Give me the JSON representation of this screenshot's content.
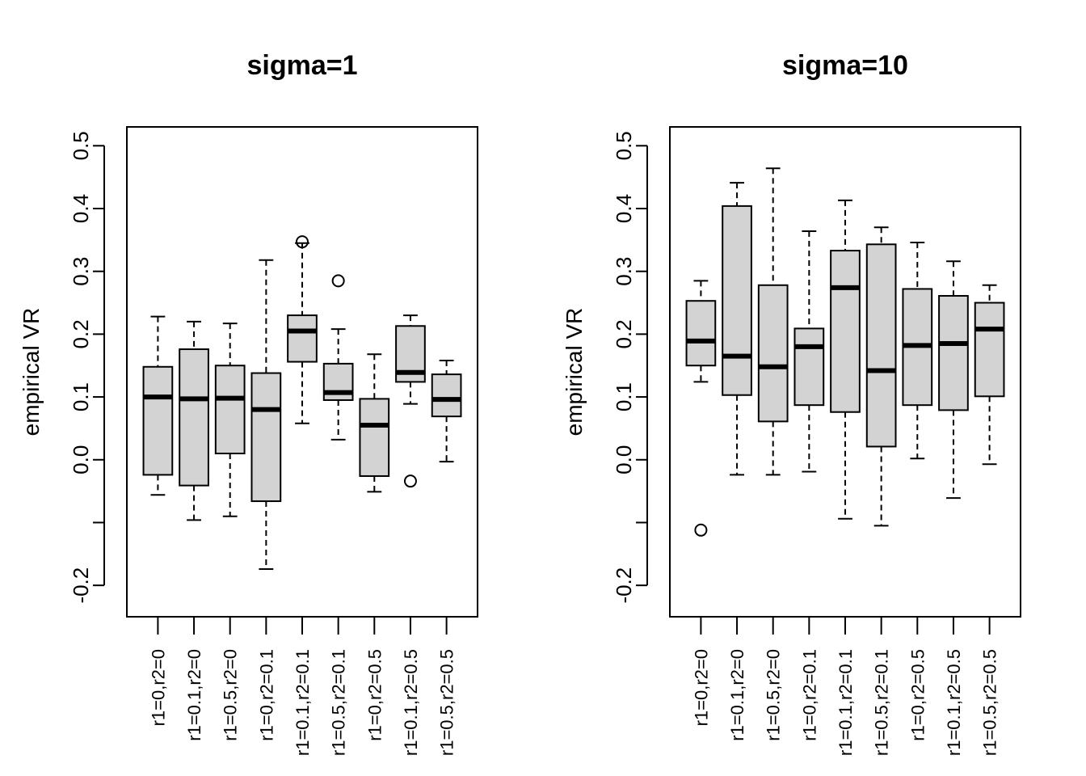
{
  "chart_data": [
    {
      "type": "boxplot",
      "title": "sigma=1",
      "xlabel": "",
      "ylabel": "empirical VR",
      "ylim": [
        -0.25,
        0.53
      ],
      "yticks": [
        -0.2,
        -0.1,
        0.0,
        0.1,
        0.2,
        0.3,
        0.4,
        0.5
      ],
      "ytick_labels": [
        "-0.2",
        "",
        "0.0",
        "0.1",
        "0.2",
        "0.3",
        "0.4",
        "0.5"
      ],
      "categories": [
        "r1=0,r2=0",
        "r1=0.1,r2=0",
        "r1=0.5,r2=0",
        "r1=0,r2=0.1",
        "r1=0.1,r2=0.1",
        "r1=0.5,r2=0.1",
        "r1=0,r2=0.5",
        "r1=0.1,r2=0.5",
        "r1=0.5,r2=0.5"
      ],
      "boxes": [
        {
          "whisker_low": -0.056,
          "q1": -0.024,
          "median": 0.1,
          "q3": 0.148,
          "whisker_high": 0.228,
          "outliers": []
        },
        {
          "whisker_low": -0.096,
          "q1": -0.041,
          "median": 0.097,
          "q3": 0.176,
          "whisker_high": 0.22,
          "outliers": []
        },
        {
          "whisker_low": -0.09,
          "q1": 0.01,
          "median": 0.098,
          "q3": 0.15,
          "whisker_high": 0.217,
          "outliers": []
        },
        {
          "whisker_low": -0.174,
          "q1": -0.066,
          "median": 0.08,
          "q3": 0.138,
          "whisker_high": 0.318,
          "outliers": []
        },
        {
          "whisker_low": 0.058,
          "q1": 0.156,
          "median": 0.205,
          "q3": 0.23,
          "whisker_high": 0.345,
          "outliers": [
            0.347
          ]
        },
        {
          "whisker_low": 0.032,
          "q1": 0.095,
          "median": 0.107,
          "q3": 0.153,
          "whisker_high": 0.208,
          "outliers": [
            0.285
          ]
        },
        {
          "whisker_low": -0.051,
          "q1": -0.026,
          "median": 0.055,
          "q3": 0.097,
          "whisker_high": 0.168,
          "outliers": []
        },
        {
          "whisker_low": 0.089,
          "q1": 0.124,
          "median": 0.139,
          "q3": 0.213,
          "whisker_high": 0.23,
          "outliers": [
            -0.034
          ]
        },
        {
          "whisker_low": -0.003,
          "q1": 0.069,
          "median": 0.096,
          "q3": 0.136,
          "whisker_high": 0.158,
          "outliers": []
        }
      ],
      "box_color": "#d3d3d3"
    },
    {
      "type": "boxplot",
      "title": "sigma=10",
      "xlabel": "",
      "ylabel": "empirical VR",
      "ylim": [
        -0.25,
        0.53
      ],
      "yticks": [
        -0.2,
        -0.1,
        0.0,
        0.1,
        0.2,
        0.3,
        0.4,
        0.5
      ],
      "ytick_labels": [
        "-0.2",
        "",
        "0.0",
        "0.1",
        "0.2",
        "0.3",
        "0.4",
        "0.5"
      ],
      "categories": [
        "r1=0,r2=0",
        "r1=0.1,r2=0",
        "r1=0.5,r2=0",
        "r1=0,r2=0.1",
        "r1=0.1,r2=0.1",
        "r1=0.5,r2=0.1",
        "r1=0,r2=0.5",
        "r1=0.1,r2=0.5",
        "r1=0.5,r2=0.5"
      ],
      "boxes": [
        {
          "whisker_low": 0.124,
          "q1": 0.15,
          "median": 0.189,
          "q3": 0.253,
          "whisker_high": 0.285,
          "outliers": [
            -0.112
          ]
        },
        {
          "whisker_low": -0.024,
          "q1": 0.103,
          "median": 0.165,
          "q3": 0.404,
          "whisker_high": 0.441,
          "outliers": []
        },
        {
          "whisker_low": -0.024,
          "q1": 0.061,
          "median": 0.148,
          "q3": 0.278,
          "whisker_high": 0.464,
          "outliers": []
        },
        {
          "whisker_low": -0.019,
          "q1": 0.087,
          "median": 0.18,
          "q3": 0.209,
          "whisker_high": 0.364,
          "outliers": []
        },
        {
          "whisker_low": -0.094,
          "q1": 0.076,
          "median": 0.274,
          "q3": 0.333,
          "whisker_high": 0.413,
          "outliers": []
        },
        {
          "whisker_low": -0.105,
          "q1": 0.021,
          "median": 0.142,
          "q3": 0.343,
          "whisker_high": 0.37,
          "outliers": []
        },
        {
          "whisker_low": 0.002,
          "q1": 0.087,
          "median": 0.182,
          "q3": 0.272,
          "whisker_high": 0.346,
          "outliers": []
        },
        {
          "whisker_low": -0.061,
          "q1": 0.079,
          "median": 0.185,
          "q3": 0.261,
          "whisker_high": 0.316,
          "outliers": []
        },
        {
          "whisker_low": -0.007,
          "q1": 0.101,
          "median": 0.208,
          "q3": 0.25,
          "whisker_high": 0.278,
          "outliers": []
        }
      ],
      "box_color": "#d3d3d3"
    }
  ]
}
